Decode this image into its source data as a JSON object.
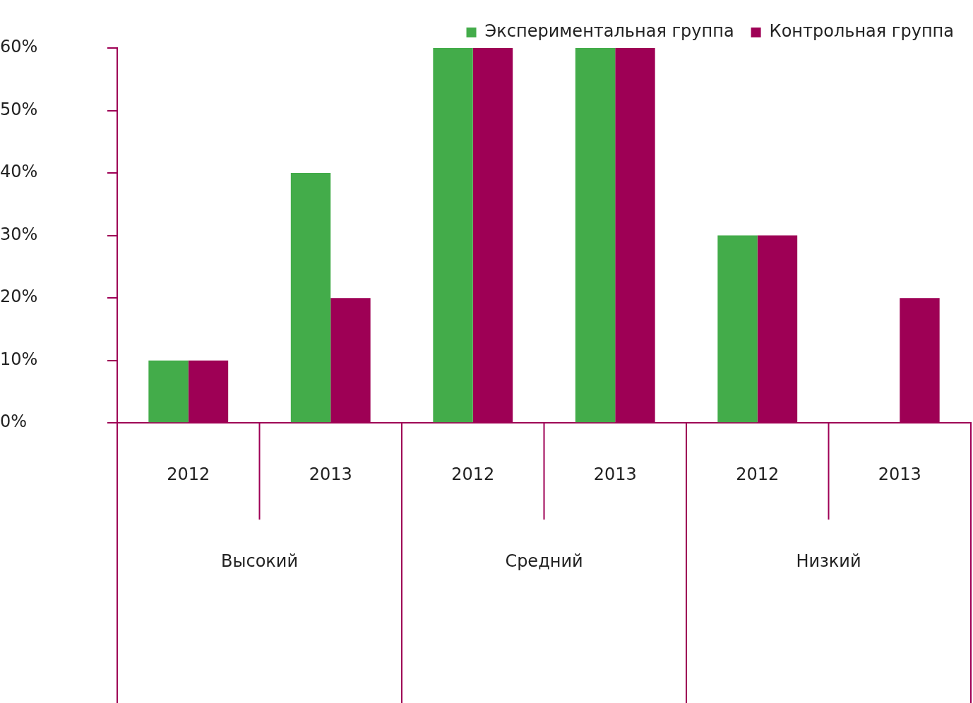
{
  "chart_data": {
    "type": "bar",
    "categories": [
      "2012",
      "2013",
      "2012",
      "2013",
      "2012",
      "2013"
    ],
    "series": [
      {
        "name": "Экспериментальная группа",
        "color": "#43ac4a",
        "values": [
          10,
          40,
          60,
          60,
          30,
          0
        ]
      },
      {
        "name": "Контрольная группа",
        "color": "#9e0055",
        "values": [
          10,
          20,
          60,
          60,
          30,
          20
        ]
      }
    ],
    "annotations": [
      "Высокий",
      "Средний",
      "Низкий"
    ],
    "ylim": [
      0,
      60
    ],
    "yticks": [
      {
        "value": 0,
        "label": "0%"
      },
      {
        "value": 10,
        "label": "10%"
      },
      {
        "value": 20,
        "label": "20%"
      },
      {
        "value": 30,
        "label": "30%"
      },
      {
        "value": 40,
        "label": "40%"
      },
      {
        "value": 50,
        "label": "50%"
      },
      {
        "value": 60,
        "label": "60%"
      }
    ],
    "grid": false,
    "legend": "top right"
  }
}
